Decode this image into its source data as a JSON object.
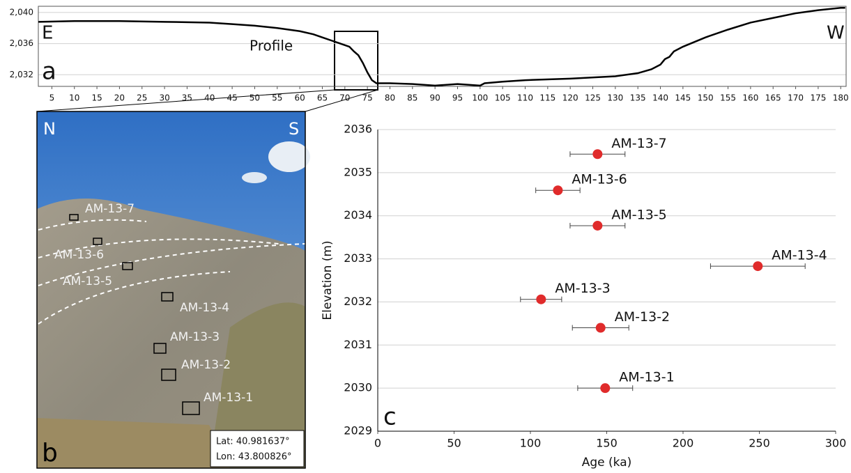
{
  "chart_data": [
    {
      "type": "line",
      "panel_label": "a",
      "left_label": "E",
      "right_label": "W",
      "profile_label": "Profile",
      "x": [
        2,
        10,
        20,
        30,
        40,
        45,
        50,
        55,
        60,
        63,
        65,
        67,
        69,
        71,
        72,
        73,
        74,
        75,
        76,
        77,
        80,
        85,
        90,
        95,
        100,
        101,
        105,
        110,
        120,
        130,
        135,
        138,
        140,
        141,
        142,
        143,
        145,
        150,
        155,
        160,
        165,
        170,
        175,
        180,
        181
      ],
      "series": [
        {
          "color": "#000000",
          "values": [
            2038.8,
            2038.9,
            2038.9,
            2038.8,
            2038.7,
            2038.5,
            2038.3,
            2038.0,
            2037.6,
            2037.2,
            2036.8,
            2036.4,
            2036.0,
            2035.6,
            2035.0,
            2034.5,
            2033.5,
            2032.3,
            2031.3,
            2030.9,
            2030.9,
            2030.8,
            2030.6,
            2030.8,
            2030.6,
            2030.9,
            2031.1,
            2031.3,
            2031.5,
            2031.8,
            2032.2,
            2032.7,
            2033.3,
            2034.0,
            2034.3,
            2035.0,
            2035.6,
            2036.8,
            2037.8,
            2038.7,
            2039.3,
            2039.9,
            2040.3,
            2040.6,
            2040.6
          ]
        }
      ],
      "xlim": [
        2,
        181.2
      ],
      "ylim": [
        2030.5,
        2040.8
      ],
      "xticks": [
        5,
        10,
        15,
        20,
        25,
        30,
        35,
        40,
        45,
        50,
        55,
        60,
        65,
        70,
        75,
        80,
        85,
        90,
        95,
        100,
        105,
        110,
        115,
        120,
        125,
        130,
        135,
        140,
        145,
        150,
        155,
        160,
        165,
        170,
        175,
        180
      ],
      "yticks": [
        {
          "value": 2032,
          "label": "2,032"
        },
        {
          "value": 2036,
          "label": "2,036"
        },
        {
          "value": 2040,
          "label": "2,040"
        }
      ],
      "grid": true
    },
    {
      "type": "scatter",
      "panel_label": "c",
      "x_label": "Age (ka)",
      "y_label": "Elevation (m)",
      "series": [
        {
          "color": "#e02b2b",
          "labels": [
            "AM-13-1",
            "AM-13-2",
            "AM-13-3",
            "AM-13-4",
            "AM-13-5",
            "AM-13-6",
            "AM-13-7"
          ],
          "x": [
            149,
            146,
            107,
            249,
            144,
            118,
            144
          ],
          "x_err": [
            18,
            18.5,
            13.5,
            31,
            18,
            14.5,
            18
          ],
          "y": [
            2030.0,
            2031.4,
            2032.06,
            2032.83,
            2033.77,
            2034.59,
            2035.43
          ]
        }
      ],
      "xlim": [
        0,
        300
      ],
      "ylim": [
        2029,
        2036
      ],
      "xticks": [
        0,
        50,
        100,
        150,
        200,
        250,
        300
      ],
      "yticks": [
        2029,
        2030,
        2031,
        2032,
        2033,
        2034,
        2035,
        2036
      ],
      "grid": true
    }
  ],
  "photo": {
    "panel_label": "b",
    "north": "N",
    "south": "S",
    "sample_labels": [
      "AM-13-7",
      "AM-13-6",
      "AM-13-5",
      "AM-13-4",
      "AM-13-3",
      "AM-13-2",
      "AM-13-1"
    ],
    "lat": "Lat:  40.981637°",
    "lon": "Lon:  43.800826°"
  }
}
